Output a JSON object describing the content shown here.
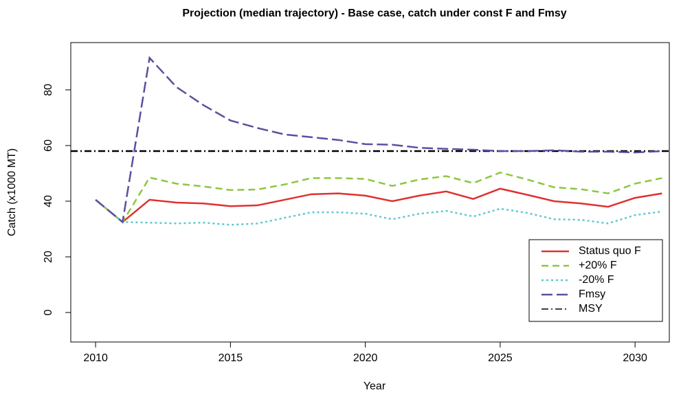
{
  "chart_data": {
    "type": "line",
    "title": "Projection (median trajectory) - Base case, catch under const F and Fmsy",
    "x_label": "Year",
    "y_label": "Catch (x1000 MT)",
    "x": [
      2010,
      2011,
      2012,
      2013,
      2014,
      2015,
      2016,
      2017,
      2018,
      2019,
      2020,
      2021,
      2022,
      2023,
      2024,
      2025,
      2026,
      2027,
      2028,
      2029,
      2030,
      2031
    ],
    "series": [
      {
        "name": "Status quo F",
        "color": "#e03030",
        "linestyle": "solid",
        "values": [
          40.5,
          32.5,
          40.5,
          39.5,
          39.2,
          38.2,
          38.5,
          40.5,
          42.5,
          42.8,
          42.0,
          40.0,
          42.0,
          43.5,
          40.8,
          44.5,
          42.3,
          40.0,
          39.2,
          38.0,
          41.2,
          42.8
        ]
      },
      {
        "name": "+20% F",
        "color": "#8dc63f",
        "linestyle": "dashed",
        "values": [
          40.5,
          32.5,
          48.5,
          46.3,
          45.3,
          44.0,
          44.2,
          46.0,
          48.3,
          48.3,
          48.0,
          45.5,
          47.8,
          49.0,
          46.5,
          50.3,
          47.8,
          45.0,
          44.3,
          42.8,
          46.3,
          48.3
        ]
      },
      {
        "name": "-20% F",
        "color": "#5bc8d0",
        "linestyle": "dotted",
        "values": [
          40.5,
          32.5,
          32.3,
          32.0,
          32.3,
          31.5,
          32.0,
          34.0,
          36.0,
          36.0,
          35.5,
          33.5,
          35.5,
          36.5,
          34.5,
          37.3,
          35.8,
          33.5,
          33.3,
          32.0,
          35.0,
          36.3
        ]
      },
      {
        "name": "Fmsy",
        "color": "#5b4ea0",
        "linestyle": "longdash",
        "values": [
          40.5,
          32.5,
          91.5,
          81.0,
          74.5,
          69.0,
          66.3,
          64.0,
          63.0,
          62.0,
          60.5,
          60.3,
          59.2,
          58.8,
          58.5,
          58.0,
          58.0,
          58.3,
          57.8,
          57.8,
          57.5,
          58.0
        ]
      }
    ],
    "hlines": [
      {
        "name": "MSY",
        "value": 58,
        "color": "#000000",
        "linestyle": "dashdot"
      }
    ],
    "xlim": [
      2009.08,
      2031.27
    ],
    "xticks": [
      2010,
      2015,
      2020,
      2025,
      2030
    ],
    "ylim": [
      -10.6,
      97
    ],
    "yticks": [
      0,
      20,
      40,
      60,
      80
    ],
    "legend": "bottomright",
    "grid": false
  }
}
